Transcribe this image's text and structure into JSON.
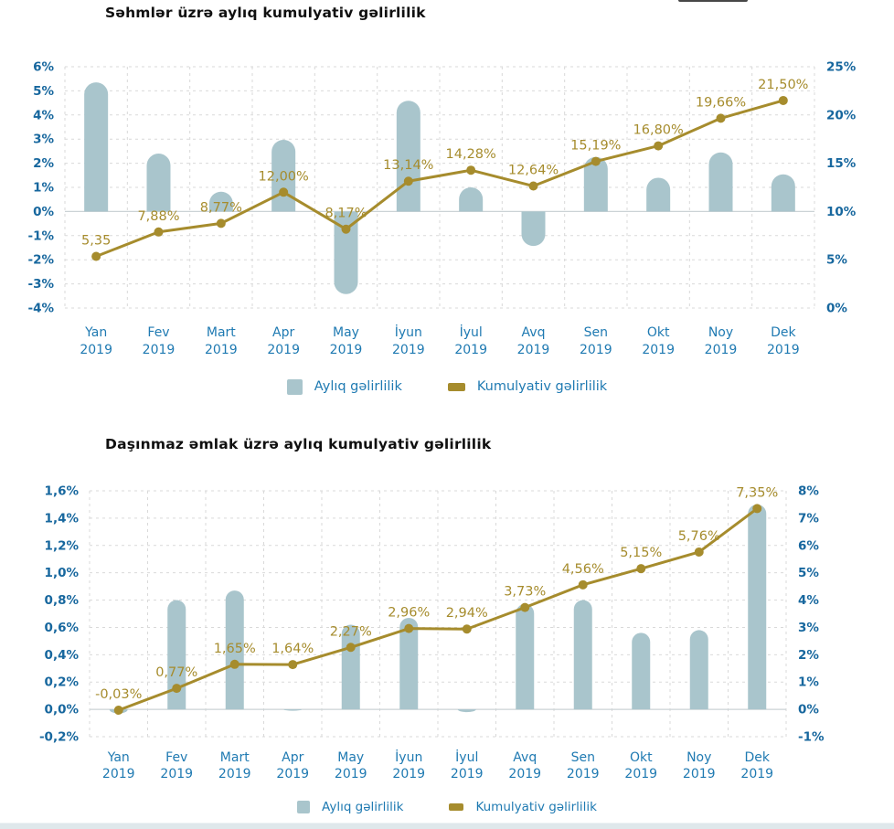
{
  "colors": {
    "background": "#ffffff",
    "bar_fill": "#a9c5cc",
    "line": "#a68c2d",
    "data_label": "#a68c2d",
    "axis_tick_text": "#17679e",
    "month_text": "#1f7ab2",
    "legend_text": "#1f7ab2",
    "title_text": "#101010",
    "grid_line": "#d9d9d9",
    "zero_line": "#ccd3d6",
    "footer_strip": "#dfe8eb",
    "top_artifact": "#474747"
  },
  "chart_data": [
    {
      "type": "combo-bar-line",
      "title": "Səhmlər üzrə aylıq kumulyativ gəlirlilik",
      "categories": [
        "Yan 2019",
        "Fev 2019",
        "Mart 2019",
        "Apr 2019",
        "May 2019",
        "İyun 2019",
        "İyul 2019",
        "Avq 2019",
        "Sen 2019",
        "Okt 2019",
        "Noy 2019",
        "Dek 2019"
      ],
      "series": [
        {
          "name": "Aylıq gəlirlilik",
          "type": "bar",
          "axis": "left",
          "values": [
            5.35,
            2.4,
            0.82,
            2.97,
            -3.42,
            4.59,
            1.0,
            -1.43,
            2.26,
            1.4,
            2.45,
            1.54
          ]
        },
        {
          "name": "Kumulyativ gəlirlilik",
          "type": "line",
          "axis": "right",
          "values": [
            5.35,
            7.88,
            8.77,
            12.0,
            8.17,
            13.14,
            14.28,
            12.64,
            15.19,
            16.8,
            19.66,
            21.5
          ],
          "point_labels": [
            "5,35",
            "7,88%",
            "8,77%",
            "12,00%",
            "8,17%",
            "13,14%",
            "14,28%",
            "12,64%",
            "15,19%",
            "16,80%",
            "19,66%",
            "21,50%"
          ]
        }
      ],
      "left_axis": {
        "min": -4,
        "max": 6,
        "step": 1,
        "tick_labels": [
          "6%",
          "5%",
          "4%",
          "3%",
          "2%",
          "1%",
          "0%",
          "-1%",
          "-2%",
          "-3%",
          "-4%"
        ]
      },
      "right_axis": {
        "min": 0,
        "max": 25,
        "step": 5,
        "tick_labels": [
          "25%",
          "20%",
          "15%",
          "10%",
          "5%",
          "0%"
        ]
      },
      "grid": "dashed",
      "legend_position": "bottom-center"
    },
    {
      "type": "combo-bar-line",
      "title": "Daşınmaz əmlak üzrə aylıq kumulyativ gəlirlilik",
      "categories": [
        "Yan 2019",
        "Fev 2019",
        "Mart 2019",
        "Apr 2019",
        "May 2019",
        "İyun 2019",
        "İyul 2019",
        "Avq 2019",
        "Sen 2019",
        "Okt 2019",
        "Noy 2019",
        "Dek 2019"
      ],
      "series": [
        {
          "name": "Aylıq gəlirlilik",
          "type": "bar",
          "axis": "left",
          "values": [
            -0.03,
            0.8,
            0.87,
            -0.01,
            0.62,
            0.67,
            -0.02,
            0.77,
            0.8,
            0.56,
            0.58,
            1.5
          ]
        },
        {
          "name": "Kumulyativ gəlirlilik",
          "type": "line",
          "axis": "right",
          "values": [
            -0.03,
            0.77,
            1.65,
            1.64,
            2.27,
            2.96,
            2.94,
            3.73,
            4.56,
            5.15,
            5.76,
            7.35
          ],
          "point_labels": [
            "-0,03%",
            "0,77%",
            "1,65%",
            "1,64%",
            "2,27%",
            "2,96%",
            "2,94%",
            "3,73%",
            "4,56%",
            "5,15%",
            "5,76%",
            "7,35%"
          ]
        }
      ],
      "left_axis": {
        "min": -0.2,
        "max": 1.6,
        "step": 0.2,
        "tick_labels": [
          "1,6%",
          "1,4%",
          "1,2%",
          "1,0%",
          "0,8%",
          "0,6%",
          "0,4%",
          "0,2%",
          "0,0%",
          "-0,2%"
        ]
      },
      "right_axis": {
        "min": -1,
        "max": 8,
        "step": 1,
        "tick_labels": [
          "8%",
          "7%",
          "6%",
          "5%",
          "4%",
          "3%",
          "2%",
          "1%",
          "0%",
          "-1%"
        ]
      },
      "grid": "dashed",
      "legend_position": "bottom-center"
    }
  ]
}
